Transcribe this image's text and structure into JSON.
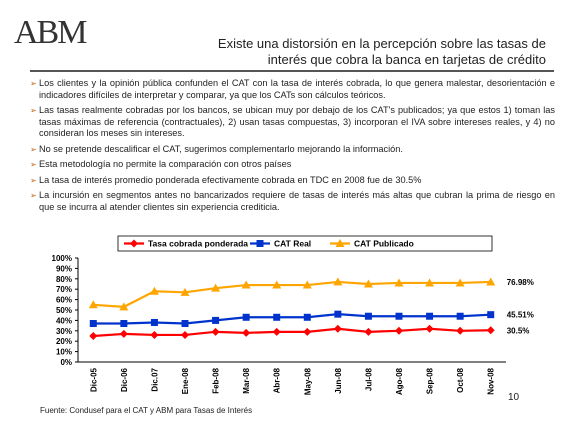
{
  "header": {
    "logo": "ABM",
    "title_lines": [
      "Existe una distorsión en la percepción sobre las tasas de",
      "interés que cobra la banca en tarjetas de crédito"
    ]
  },
  "bullets": [
    "Los clientes y la opinión pública confunden el CAT con la tasa de interés cobrada, lo que genera malestar, desorientación e indicadores difíciles de interpretar y comparar, ya que los CATs son cálculos teóricos.",
    "Las tasas realmente cobradas por los bancos, se ubican muy por debajo de los CAT's publicados; ya que estos 1) toman las tasas máximas de referencia (contractuales), 2) usan tasas compuestas, 3) incorporan el IVA sobre intereses reales, y 4) no consideran los meses sin intereses.",
    "No se pretende descalificar el CAT, sugerimos complementarlo mejorando la información.",
    "Esta metodología no permite la comparación con otros países",
    "La tasa de interés promedio ponderada efectivamente cobrada en TDC en 2008 fue de 30.5%",
    "La incursión en segmentos antes no bancarizados requiere de tasas de interés más altas que cubran la prima de riesgo en que se incurra al atender clientes sin experiencia crediticia."
  ],
  "chart_data": {
    "type": "line",
    "categories": [
      "Dic-05",
      "Dic-06",
      "Dic.07",
      "Ene-08",
      "Feb-08",
      "Mar-08",
      "Abr-08",
      "May-08",
      "Jun-08",
      "Jul-08",
      "Ago-08",
      "Sep-08",
      "Oct-08",
      "Nov-08"
    ],
    "series": [
      {
        "name": "Tasa cobrada ponderada",
        "color": "#ff0000",
        "marker": "diamond",
        "values": [
          25,
          27,
          26,
          26,
          29,
          28,
          29,
          29,
          32,
          29,
          30,
          32,
          30,
          30.5
        ],
        "value_labels": [
          null,
          null,
          null,
          null,
          null,
          null,
          null,
          null,
          null,
          null,
          null,
          null,
          null,
          "30.5%"
        ]
      },
      {
        "name": "CAT Real",
        "color": "#0033cc",
        "marker": "square",
        "values": [
          37,
          37,
          38,
          37,
          40,
          43,
          43,
          43,
          46,
          44,
          44,
          44,
          44,
          45.51
        ],
        "value_labels": [
          null,
          null,
          null,
          null,
          null,
          null,
          null,
          null,
          null,
          null,
          null,
          null,
          null,
          "45.51%"
        ]
      },
      {
        "name": "CAT Publicado",
        "color": "#ffa500",
        "marker": "triangle",
        "values": [
          55,
          53,
          68,
          67,
          71,
          74,
          74,
          74,
          77,
          75,
          76,
          76,
          76,
          76.98
        ],
        "value_labels": [
          null,
          null,
          null,
          null,
          null,
          null,
          null,
          null,
          null,
          null,
          null,
          null,
          null,
          "76.98%"
        ]
      }
    ],
    "ylim": [
      0,
      100
    ],
    "yticks": [
      {
        "value": 0,
        "label": "0%"
      },
      {
        "value": 10,
        "label": "10%"
      },
      {
        "value": 20,
        "label": "20%"
      },
      {
        "value": 30,
        "label": "30%"
      },
      {
        "value": 40,
        "label": "40%"
      },
      {
        "value": 50,
        "label": "50%"
      },
      {
        "value": 60,
        "label": "60%"
      },
      {
        "value": 70,
        "label": "70%"
      },
      {
        "value": 80,
        "label": "80%"
      },
      {
        "value": 90,
        "label": "90%"
      },
      {
        "value": 100,
        "label": "100%"
      }
    ],
    "grid": false
  },
  "source": "Fuente: Condusef para el CAT y ABM para Tasas de Interés",
  "page_number": "10"
}
